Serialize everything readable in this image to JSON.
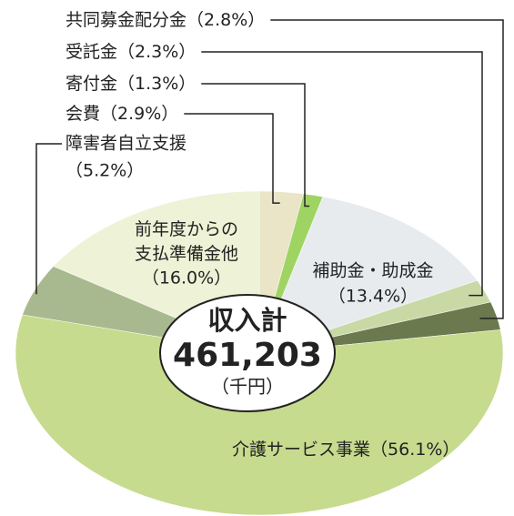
{
  "chart_data": {
    "type": "pie",
    "categories": [
      "会費",
      "寄付金",
      "補助金・助成金",
      "受託金",
      "共同募金配分金",
      "介護サービス事業",
      "障害者自立支援",
      "前年度からの支払準備金他"
    ],
    "values": [
      2.9,
      1.3,
      13.4,
      2.3,
      2.8,
      56.1,
      5.2,
      16.0
    ],
    "value_labels": [
      "（2.9%）",
      "（1.3%）",
      "（13.4%）",
      "（2.3%）",
      "（2.8%）",
      "（56.1%）",
      "（5.2%）",
      "（16.0%）"
    ],
    "colors": [
      "#e9e5c6",
      "#9fd463",
      "#e7ebee",
      "#c9d9a6",
      "#6a7a4e",
      "#c6db8e",
      "#a9b98f",
      "#eef2d6"
    ],
    "center_label": {
      "title": "収入計",
      "total": "461,203",
      "unit": "（千円）"
    }
  }
}
